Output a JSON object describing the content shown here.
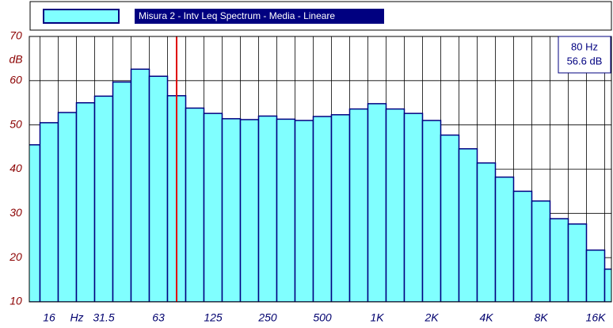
{
  "chart_data": {
    "type": "bar",
    "legend": "Misura 2 - Intv Leq Spectrum - Media - Lineare",
    "y_unit": "dB",
    "x_unit": "Hz",
    "categories": [
      null,
      "16",
      null,
      null,
      "31.5",
      null,
      null,
      "63",
      null,
      null,
      "125",
      null,
      null,
      "250",
      null,
      null,
      "500",
      null,
      null,
      "1K",
      null,
      null,
      "2K",
      null,
      null,
      "4K",
      null,
      null,
      "8K",
      null,
      null,
      "16K",
      null
    ],
    "values": [
      45.5,
      50.5,
      52.8,
      55,
      56.5,
      59.7,
      62.6,
      61,
      56.6,
      53.8,
      52.6,
      51.4,
      51.2,
      52,
      51.3,
      51,
      51.9,
      52.3,
      53.6,
      54.8,
      53.6,
      52.6,
      51,
      47.7,
      44.6,
      41.4,
      38.2,
      35,
      32.8,
      28.8,
      27.6,
      21.7,
      17.4
    ],
    "color": "#80ffff",
    "edge_color": "#000080",
    "ylim": [
      10,
      70
    ],
    "yticks": [
      10,
      20,
      30,
      40,
      50,
      60,
      70
    ],
    "grid": true,
    "cursor": {
      "category": 8,
      "freq_label": "80 Hz",
      "level_label": "56.6 dB",
      "color": "#e00000"
    }
  }
}
